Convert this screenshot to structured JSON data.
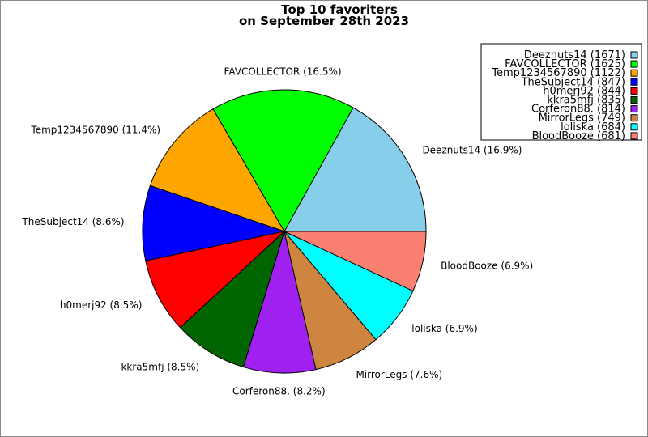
{
  "chart_data": {
    "type": "pie",
    "title_lines": [
      "Top 10 favoriters",
      "on September 28th 2023"
    ],
    "start_angle_deg": 0,
    "direction": "counterclockwise",
    "legend_position": "top-right",
    "slices": [
      {
        "name": "Deeznuts14",
        "value": 1671,
        "percent_label": "16.9%",
        "color": "#87ceeb"
      },
      {
        "name": "FAVCOLLECTOR",
        "value": 1625,
        "percent_label": "16.5%",
        "color": "#00ff00"
      },
      {
        "name": "Temp1234567890",
        "value": 1122,
        "percent_label": "11.4%",
        "color": "#ffa500"
      },
      {
        "name": "TheSubject14",
        "value": 847,
        "percent_label": "8.6%",
        "color": "#0000ff"
      },
      {
        "name": "h0merj92",
        "value": 844,
        "percent_label": "8.5%",
        "color": "#ff0000"
      },
      {
        "name": "kkra5mfj",
        "value": 835,
        "percent_label": "8.5%",
        "color": "#006400"
      },
      {
        "name": "Corferon88.",
        "value": 814,
        "percent_label": "8.2%",
        "color": "#a020f0"
      },
      {
        "name": "MirrorLegs",
        "value": 749,
        "percent_label": "7.6%",
        "color": "#cd853f"
      },
      {
        "name": "loliska",
        "value": 684,
        "percent_label": "6.9%",
        "color": "#00ffff"
      },
      {
        "name": "BloodBooze",
        "value": 681,
        "percent_label": "6.9%",
        "color": "#fa8072"
      }
    ]
  }
}
